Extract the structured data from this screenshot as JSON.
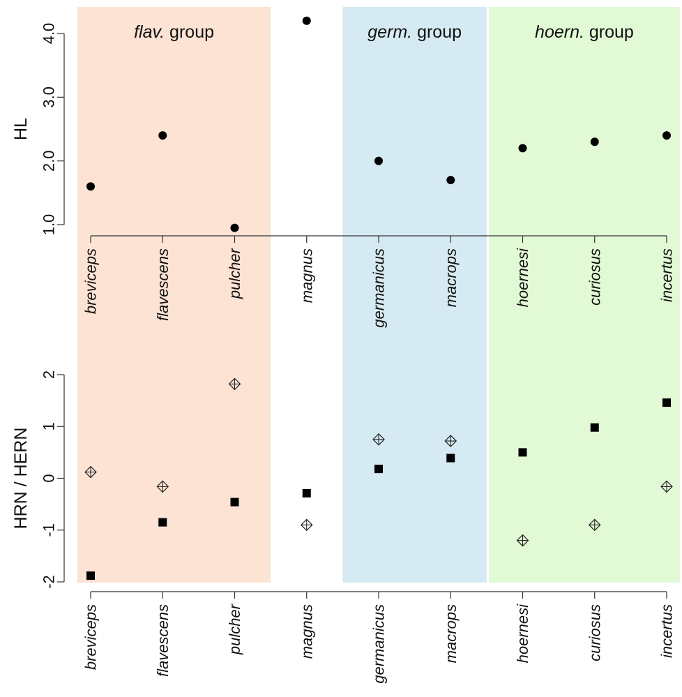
{
  "chart_data": [
    {
      "type": "scatter",
      "ylabel": "HL",
      "ylim": [
        1.0,
        4.0
      ],
      "yticks": [
        "1.0",
        "2.0",
        "3.0",
        "4.0"
      ],
      "categories": [
        "breviceps",
        "flavescens",
        "pulcher",
        "magnus",
        "germanicus",
        "macrops",
        "hoernesi",
        "curiosus",
        "incertus"
      ],
      "series": [
        {
          "marker": "filled-circle",
          "values": [
            1.6,
            2.4,
            0.95,
            4.2,
            2.0,
            1.7,
            2.2,
            2.3,
            2.4
          ]
        }
      ],
      "groups": [
        {
          "label_italic": "flav.",
          "label_rest": " group",
          "from": 0,
          "to": 2,
          "color": "#fce3d4"
        },
        {
          "label_italic": "germ.",
          "label_rest": " group",
          "from": 4,
          "to": 5,
          "color": "#d5eaf2"
        },
        {
          "label_italic": "hoern.",
          "label_rest": " group",
          "from": 6,
          "to": 8,
          "color": "#e2f9d6"
        }
      ]
    },
    {
      "type": "scatter",
      "ylabel": "HRN / HERN",
      "ylim": [
        -2,
        2
      ],
      "yticks": [
        "-2",
        "-1",
        "0",
        "1",
        "2"
      ],
      "categories": [
        "breviceps",
        "flavescens",
        "pulcher",
        "magnus",
        "germanicus",
        "macrops",
        "hoernesi",
        "curiosus",
        "incertus"
      ],
      "series": [
        {
          "marker": "filled-square",
          "values": [
            -1.88,
            -0.85,
            -0.46,
            -0.29,
            0.18,
            0.39,
            0.5,
            0.98,
            1.46
          ]
        },
        {
          "marker": "crossed-diamond",
          "values": [
            0.12,
            -0.16,
            1.82,
            -0.9,
            0.75,
            0.72,
            -1.2,
            -0.9,
            -0.16
          ]
        }
      ]
    }
  ]
}
